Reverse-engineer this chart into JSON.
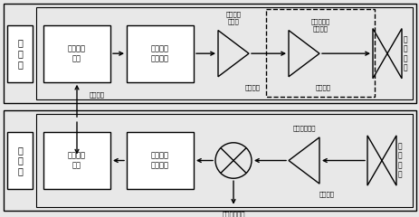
{
  "fig_width": 4.64,
  "fig_height": 2.4,
  "dpi": 100,
  "bg_color": "#e8e8e8",
  "box_fc": "#e8e8e8",
  "white": "#ffffff",
  "black": "#000000",
  "fs_chain": 7,
  "fs_block": 6,
  "fs_label": 5.5,
  "fs_small": 5,
  "tx_chain_label": "发\n射\n链",
  "rx_chain_label": "接\n收\n链",
  "tx_bb_label": "基带调频\n信号",
  "tx_mult_label": "太赫兹本\n振倍频链",
  "solid_amp_label": "固态功率\n放大器",
  "vacuum_amp_label": "电真空太赫\n兹放大器",
  "tx_ant_label": "发\n射\n天\n线",
  "rx_bb_label": "基带调频\n信号",
  "rx_mult_label": "太赫兹本\n振倍频链",
  "lna_label": "低噪声放大器",
  "rx_ant_label": "接\n收\n天\n线",
  "sync_label": "同步信号",
  "wg1_label": "波导连接",
  "wg2_label": "波导连接",
  "wg3_label": "波导连接",
  "if_label": "中频信号输出"
}
